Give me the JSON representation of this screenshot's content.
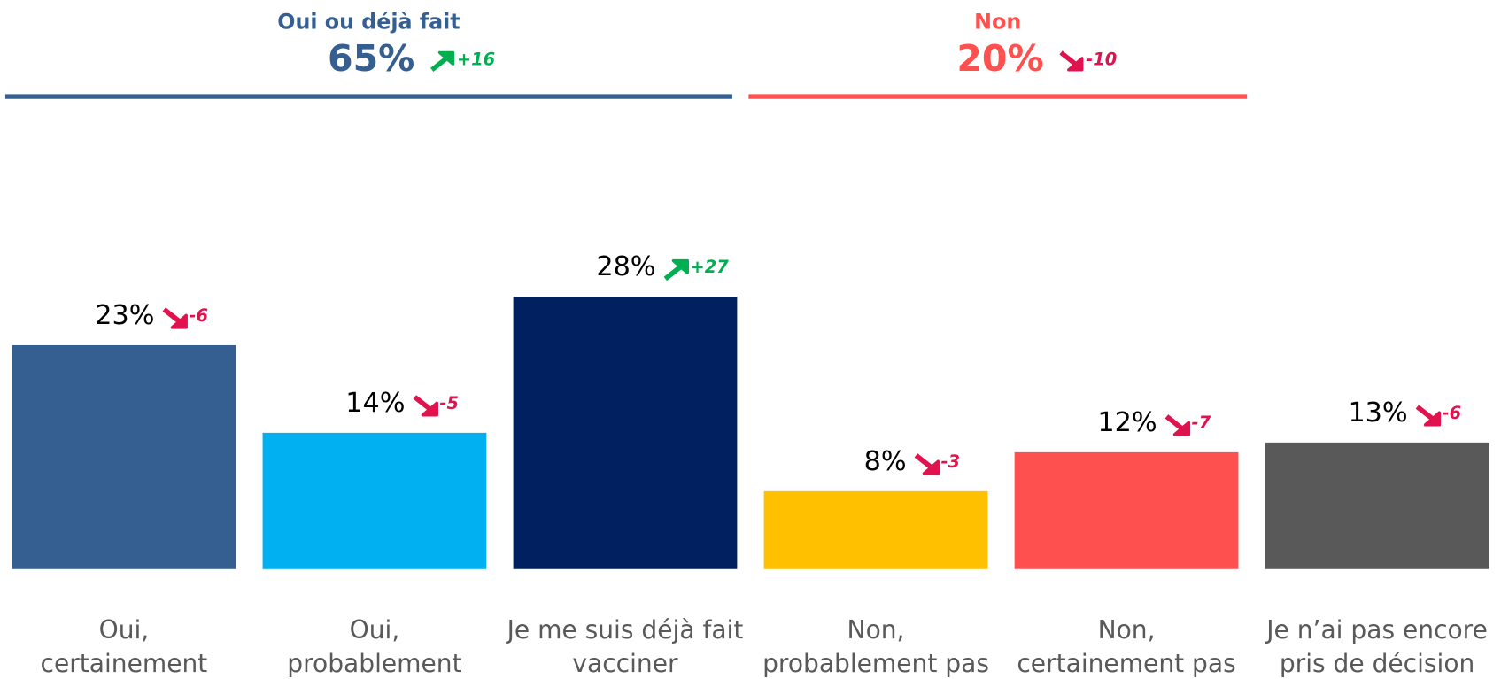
{
  "chart_data": {
    "type": "bar",
    "groups": [
      {
        "label": "Oui ou déjà fait",
        "share": "65%",
        "change": "+16",
        "color": "#365f91"
      },
      {
        "label": "Non",
        "share": "20%",
        "change": "-10",
        "color": "#ff5050"
      }
    ],
    "categories": [
      "Oui,\ncertainement",
      "Oui,\nprobablement",
      "Je me suis déjà fait\nvacciner",
      "Non,\nprobablement pas",
      "Non,\ncertainement pas",
      "Je n’ai pas encore\npris de décision"
    ],
    "values": [
      23,
      14,
      28,
      8,
      12,
      13
    ],
    "value_labels": [
      "23%",
      "14%",
      "28%",
      "8%",
      "12%",
      "13%"
    ],
    "changes": [
      -6,
      -5,
      27,
      -3,
      -7,
      -6
    ],
    "change_labels": [
      "-6",
      "-5",
      "+27",
      "-3",
      "-7",
      "-6"
    ],
    "colors": [
      "#365f91",
      "#00b0f0",
      "#002060",
      "#ffc000",
      "#ff5050",
      "#595959"
    ],
    "ylim": [
      0,
      40
    ]
  }
}
